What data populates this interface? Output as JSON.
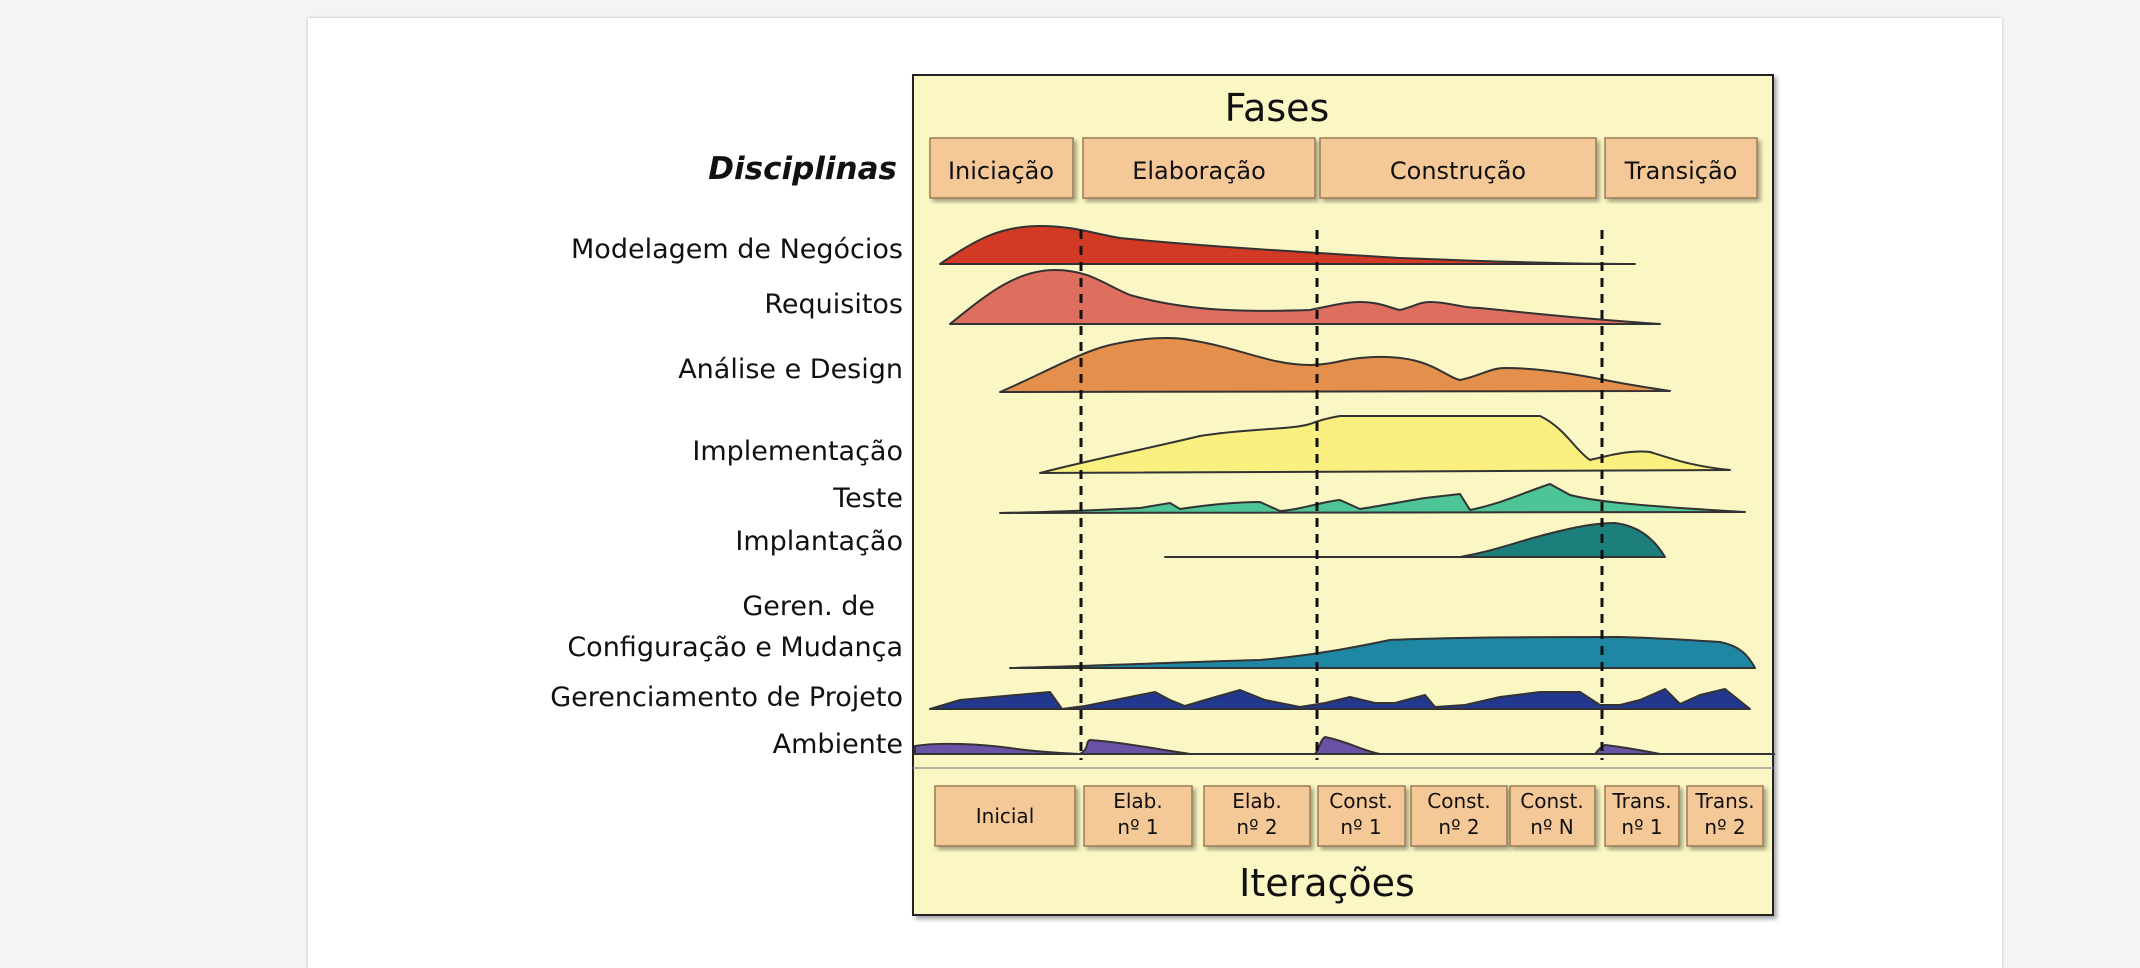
{
  "title": "Fases",
  "disciplines_heading": "Disciplinas",
  "phases": [
    "Iniciação",
    "Elaboração",
    "Construção",
    "Transição"
  ],
  "disciplines": [
    {
      "label": "Modelagem de Negócios",
      "color": "#d23a25"
    },
    {
      "label": "Requisitos",
      "color": "#de6f5f"
    },
    {
      "label": "Análise e Design",
      "color": "#e4904c"
    },
    {
      "label": "Implementação",
      "color": "#faf07f"
    },
    {
      "label": "Teste",
      "color": "#4ec596"
    },
    {
      "label": "Implantação",
      "color": "#1d7f7b"
    },
    {
      "label_line1": "Geren. de",
      "label_line2": "Configuração e Mudança",
      "color": "#1f87a3"
    },
    {
      "label": "Gerenciamento de Projeto",
      "color": "#23378f"
    },
    {
      "label": "Ambiente",
      "color": "#6a52a6"
    }
  ],
  "iterations": [
    {
      "line1": "Inicial",
      "line2": ""
    },
    {
      "line1": "Elab.",
      "line2": "nº 1"
    },
    {
      "line1": "Elab.",
      "line2": "nº 2"
    },
    {
      "line1": "Const.",
      "line2": "nº 1"
    },
    {
      "line1": "Const.",
      "line2": "nº 2"
    },
    {
      "line1": "Const.",
      "line2": "nº N"
    },
    {
      "line1": "Trans.",
      "line2": "nº 1"
    },
    {
      "line1": "Trans.",
      "line2": "nº 2"
    }
  ],
  "footer": "Iterações",
  "colors": {
    "panel": "#fbf7c4",
    "box": "#f5c898",
    "panel_border": "#222222"
  }
}
